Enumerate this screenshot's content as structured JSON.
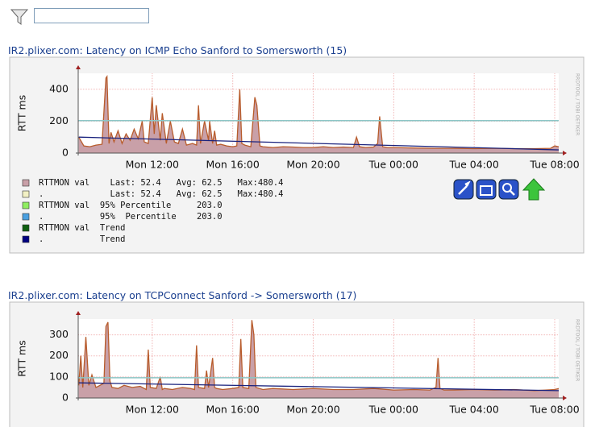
{
  "chart_data": [
    {
      "type": "area",
      "title": "IR2.plixer.com: Latency on ICMP Echo Sanford to Somersworth (15)",
      "ylabel": "RTT ms",
      "side_text": "RRDTOOL / TOBI OETIKER",
      "xlim": [
        8.32,
        32.2
      ],
      "xticks": [
        {
          "value": 12,
          "label": "Mon 12:00"
        },
        {
          "value": 16,
          "label": "Mon 16:00"
        },
        {
          "value": 20,
          "label": "Mon 20:00"
        },
        {
          "value": 24,
          "label": "Tue 00:00"
        },
        {
          "value": 28,
          "label": "Tue 04:00"
        },
        {
          "value": 32,
          "label": "Tue 08:00"
        }
      ],
      "ylim": [
        0,
        500
      ],
      "yticks": [
        0,
        200,
        400
      ],
      "grid": true,
      "x": [
        8.35,
        8.6,
        8.9,
        9.2,
        9.5,
        9.7,
        9.75,
        9.85,
        9.95,
        10.1,
        10.3,
        10.5,
        10.7,
        10.9,
        11.1,
        11.3,
        11.5,
        11.6,
        11.8,
        12.0,
        12.1,
        12.2,
        12.4,
        12.5,
        12.7,
        12.9,
        13.1,
        13.3,
        13.5,
        13.7,
        14.0,
        14.2,
        14.3,
        14.4,
        14.6,
        14.8,
        14.85,
        15.0,
        15.1,
        15.2,
        15.4,
        15.7,
        16.0,
        16.2,
        16.35,
        16.45,
        16.6,
        16.9,
        17.1,
        17.2,
        17.35,
        17.5,
        18,
        18.5,
        19,
        19.5,
        20,
        20.5,
        21,
        21.5,
        22,
        22.15,
        22.3,
        22.6,
        23,
        23.2,
        23.3,
        23.45,
        23.7,
        24,
        25,
        26,
        27,
        28,
        29,
        30,
        31,
        31.8,
        32.0,
        32.2
      ],
      "series": [
        {
          "name": "RTTMON val",
          "color": "#c9a0a8",
          "line_color": "#b85c2c",
          "values": [
            100,
            45,
            40,
            50,
            55,
            470,
            480,
            60,
            130,
            70,
            140,
            60,
            120,
            80,
            150,
            90,
            200,
            70,
            60,
            350,
            120,
            300,
            80,
            250,
            60,
            200,
            70,
            60,
            150,
            50,
            60,
            50,
            300,
            60,
            200,
            80,
            200,
            60,
            140,
            50,
            55,
            45,
            40,
            45,
            400,
            60,
            50,
            40,
            350,
            300,
            45,
            40,
            35,
            40,
            38,
            35,
            35,
            40,
            35,
            38,
            35,
            100,
            40,
            35,
            38,
            60,
            230,
            40,
            35,
            35,
            32,
            30,
            30,
            28,
            30,
            28,
            28,
            30,
            45,
            40
          ]
        }
      ],
      "percentile": 203,
      "percentile_color": "#8cc6c6",
      "trend_x": [
        8.35,
        32.2
      ],
      "trend_values": [
        100,
        20
      ],
      "trend_color": "#1a237e",
      "legend": [
        {
          "color": "#c9a0a8",
          "text": "RTTMON val    Last: 52.4   Avg: 62.5   Max:480.4"
        },
        {
          "color": "#f2f0c4",
          "text": ".             Last: 52.4   Avg: 62.5   Max:480.4"
        },
        {
          "color": "#90ee60",
          "text": "RTTMON val  95% Percentile     203.0"
        },
        {
          "color": "#4aa0e0",
          "text": ".           95%  Percentile    203.0"
        },
        {
          "color": "#106010",
          "text": "RTTMON val  Trend"
        },
        {
          "color": "#00007f",
          "text": ".           Trend"
        }
      ]
    },
    {
      "type": "area",
      "title": "IR2.plixer.com: Latency on TCPConnect Sanford -> Somersworth (17)",
      "ylabel": "RTT ms",
      "side_text": "RRDTOOL / TOBI OETIKER",
      "xlim": [
        8.32,
        32.2
      ],
      "xticks": [
        {
          "value": 12,
          "label": "Mon 12:00"
        },
        {
          "value": 16,
          "label": "Mon 16:00"
        },
        {
          "value": 20,
          "label": "Mon 20:00"
        },
        {
          "value": 24,
          "label": "Tue 00:00"
        },
        {
          "value": 28,
          "label": "Tue 04:00"
        },
        {
          "value": 32,
          "label": "Tue 08:00"
        }
      ],
      "ylim": [
        0,
        375
      ],
      "yticks": [
        0,
        100,
        200,
        300
      ],
      "grid": true,
      "x": [
        8.35,
        8.45,
        8.55,
        8.7,
        8.85,
        9.0,
        9.2,
        9.4,
        9.6,
        9.7,
        9.8,
        9.9,
        10.0,
        10.3,
        10.6,
        11.0,
        11.4,
        11.7,
        11.8,
        11.9,
        12.2,
        12.4,
        12.5,
        12.6,
        13.0,
        13.5,
        13.9,
        14.1,
        14.2,
        14.3,
        14.6,
        14.7,
        14.8,
        15.0,
        15.1,
        15.2,
        15.5,
        16.0,
        16.3,
        16.4,
        16.5,
        16.8,
        16.95,
        17.05,
        17.15,
        17.5,
        18,
        19,
        20,
        21,
        22,
        23,
        24,
        25,
        25.8,
        26.1,
        26.2,
        26.3,
        26.5,
        27,
        28,
        29,
        30,
        31,
        32,
        32.2
      ],
      "series": [
        {
          "name": "RTTMON val",
          "color": "#c9a0a8",
          "line_color": "#b85c2c",
          "values": [
            60,
            200,
            50,
            290,
            60,
            110,
            50,
            60,
            70,
            340,
            360,
            80,
            50,
            45,
            60,
            50,
            55,
            40,
            230,
            50,
            45,
            100,
            40,
            45,
            40,
            50,
            45,
            40,
            250,
            50,
            45,
            130,
            50,
            190,
            50,
            45,
            40,
            45,
            50,
            280,
            50,
            45,
            370,
            300,
            50,
            40,
            45,
            40,
            45,
            40,
            40,
            45,
            38,
            40,
            38,
            50,
            190,
            45,
            38,
            38,
            40,
            38,
            40,
            35,
            40,
            45
          ]
        }
      ],
      "percentile": 96,
      "percentile_color": "#8cc6c6",
      "trend_x": [
        8.35,
        32.2
      ],
      "trend_values": [
        72,
        35
      ],
      "trend_color": "#1a237e",
      "legend": []
    }
  ]
}
